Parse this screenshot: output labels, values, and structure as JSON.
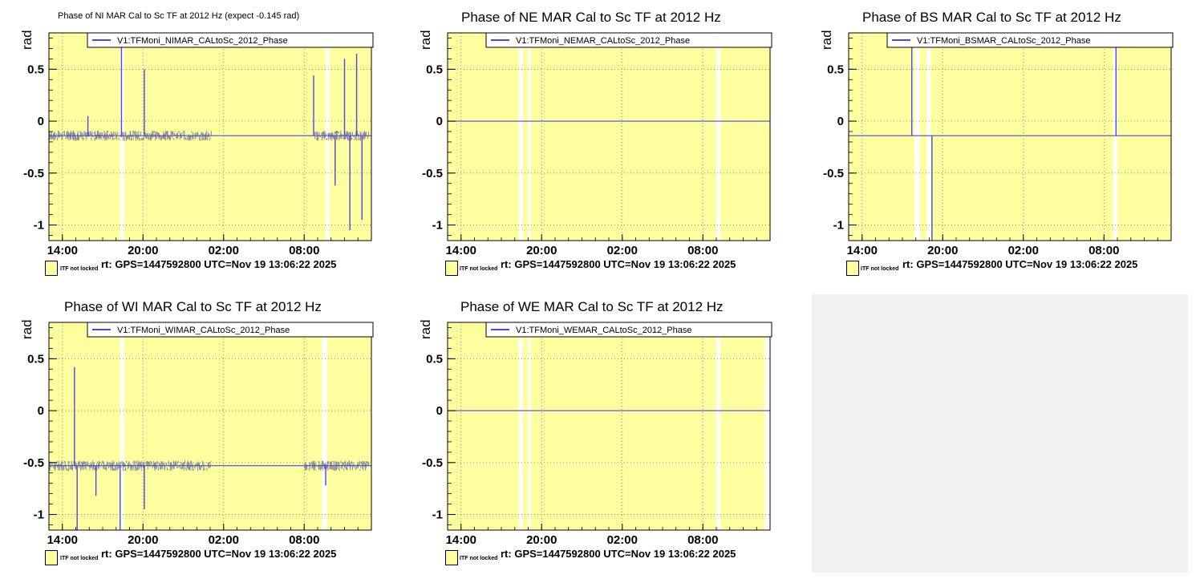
{
  "colors": {
    "unlocked_fill": "#ffffa0",
    "series": "#4848e8",
    "grid": "#7a7a7a",
    "empty_pad": "#f0f0f0"
  },
  "axis": {
    "ylabel": "rad",
    "xticks": [
      "14:00",
      "20:00",
      "02:00",
      "08:00"
    ],
    "yticks": [
      "0.5",
      "0",
      "-0.5",
      "-1"
    ]
  },
  "panels": [
    {
      "title": "Phase of NI MAR Cal to Sc TF at 2012 Hz (expect -0.145 rad)",
      "legend": "V1:TFMoni_NIMAR_CALtoSc_2012_Phase",
      "start": "rt: GPS=1447592800 UTC=Nov 19 13:06:22 2025",
      "lock_label": "ITF not locked"
    },
    {
      "title": "Phase of NE MAR Cal to Sc TF at 2012 Hz",
      "legend": "V1:TFMoni_NEMAR_CALtoSc_2012_Phase",
      "start": "rt: GPS=1447592800 UTC=Nov 19 13:06:22 2025",
      "lock_label": "ITF not locked"
    },
    {
      "title": "Phase of BS MAR Cal to Sc TF at 2012 Hz",
      "legend": "V1:TFMoni_BSMAR_CALtoSc_2012_Phase",
      "start": "rt: GPS=1447592800 UTC=Nov 19 13:06:22 2025",
      "lock_label": "ITF not locked"
    },
    {
      "title": "Phase of WI MAR Cal to Sc TF at 2012 Hz",
      "legend": "V1:TFMoni_WIMAR_CALtoSc_2012_Phase",
      "start": "rt: GPS=1447592800 UTC=Nov 19 13:06:22 2025",
      "lock_label": "ITF not locked"
    },
    {
      "title": "Phase of WE MAR Cal to Sc TF at 2012 Hz",
      "legend": "V1:TFMoni_WEMAR_CALtoSc_2012_Phase",
      "start": "rt: GPS=1447592800 UTC=Nov 19 13:06:22 2025",
      "lock_label": "ITF not locked"
    }
  ],
  "chart_data": [
    {
      "type": "line",
      "title": "Phase of NI MAR Cal to Sc TF at 2012 Hz (expect -0.145 rad)",
      "ylabel": "rad",
      "xlim_hours_from_13_06": [
        0,
        24
      ],
      "ylim": [
        -1.15,
        0.85
      ],
      "series": [
        {
          "name": "V1:TFMoni_NIMAR_CALtoSc_2012_Phase",
          "baseline": -0.14,
          "noisy_intervals_h": [
            [
              0,
              12.1
            ],
            [
              19.8,
              23.8
            ]
          ],
          "noise_halfwidth": 0.05,
          "spikes": [
            [
              2.9,
              0.05
            ],
            [
              5.4,
              0.72
            ],
            [
              7.1,
              0.5
            ],
            [
              19.7,
              0.44
            ],
            [
              21.3,
              -0.62
            ],
            [
              22.0,
              0.6
            ],
            [
              22.4,
              -1.05
            ],
            [
              22.9,
              0.65
            ],
            [
              23.3,
              -0.95
            ]
          ]
        }
      ],
      "locked_gaps_h": [
        [
          5.3,
          5.6
        ],
        [
          20.6,
          20.9
        ]
      ]
    },
    {
      "type": "line",
      "title": "Phase of NE MAR Cal to Sc TF at 2012 Hz",
      "ylabel": "rad",
      "xlim_hours_from_13_06": [
        0,
        24
      ],
      "ylim": [
        -1.15,
        0.85
      ],
      "series": [
        {
          "name": "V1:TFMoni_NEMAR_CALtoSc_2012_Phase",
          "baseline": 0.0,
          "noisy_intervals_h": [],
          "noise_halfwidth": 0.0,
          "spikes": []
        }
      ],
      "locked_gaps_h": [
        [
          5.3,
          5.6
        ],
        [
          6.0,
          6.2
        ],
        [
          20.0,
          20.3
        ]
      ]
    },
    {
      "type": "line",
      "title": "Phase of BS MAR Cal to Sc TF at 2012 Hz",
      "ylabel": "rad",
      "xlim_hours_from_13_06": [
        0,
        24
      ],
      "ylim": [
        -1.15,
        0.85
      ],
      "series": [
        {
          "name": "V1:TFMoni_BSMAR_CALtoSc_2012_Phase",
          "baseline": -0.14,
          "noisy_intervals_h": [],
          "noise_halfwidth": 0.0,
          "spikes": [
            [
              4.7,
              0.72
            ],
            [
              6.2,
              -1.15
            ],
            [
              19.9,
              0.72
            ]
          ]
        }
      ],
      "locked_gaps_h": [
        [
          4.9,
          5.3
        ],
        [
          5.8,
          6.1
        ],
        [
          19.7,
          20.0
        ]
      ]
    },
    {
      "type": "line",
      "title": "Phase of WI MAR Cal to Sc TF at 2012 Hz",
      "ylabel": "rad",
      "xlim_hours_from_13_06": [
        0,
        24
      ],
      "ylim": [
        -1.15,
        0.85
      ],
      "series": [
        {
          "name": "V1:TFMoni_WIMAR_CALtoSc_2012_Phase",
          "baseline": -0.53,
          "noisy_intervals_h": [
            [
              0,
              12.1
            ],
            [
              19.0,
              23.8
            ]
          ],
          "noise_halfwidth": 0.05,
          "spikes": [
            [
              1.9,
              0.42
            ],
            [
              2.1,
              -1.15
            ],
            [
              3.5,
              -0.82
            ],
            [
              5.3,
              -1.15
            ],
            [
              7.1,
              -0.95
            ],
            [
              20.6,
              -0.72
            ]
          ]
        }
      ],
      "locked_gaps_h": [
        [
          5.3,
          5.6
        ],
        [
          20.3,
          20.7
        ]
      ]
    },
    {
      "type": "line",
      "title": "Phase of WE MAR Cal to Sc TF at 2012 Hz",
      "ylabel": "rad",
      "xlim_hours_from_13_06": [
        0,
        24
      ],
      "ylim": [
        -1.15,
        0.85
      ],
      "series": [
        {
          "name": "V1:TFMoni_WEMAR_CALtoSc_2012_Phase",
          "baseline": 0.0,
          "noisy_intervals_h": [],
          "noise_halfwidth": 0.0,
          "spikes": []
        }
      ],
      "locked_gaps_h": [
        [
          5.3,
          5.6
        ],
        [
          6.0,
          6.2
        ],
        [
          20.0,
          20.3
        ],
        [
          23.6,
          24
        ]
      ]
    }
  ]
}
